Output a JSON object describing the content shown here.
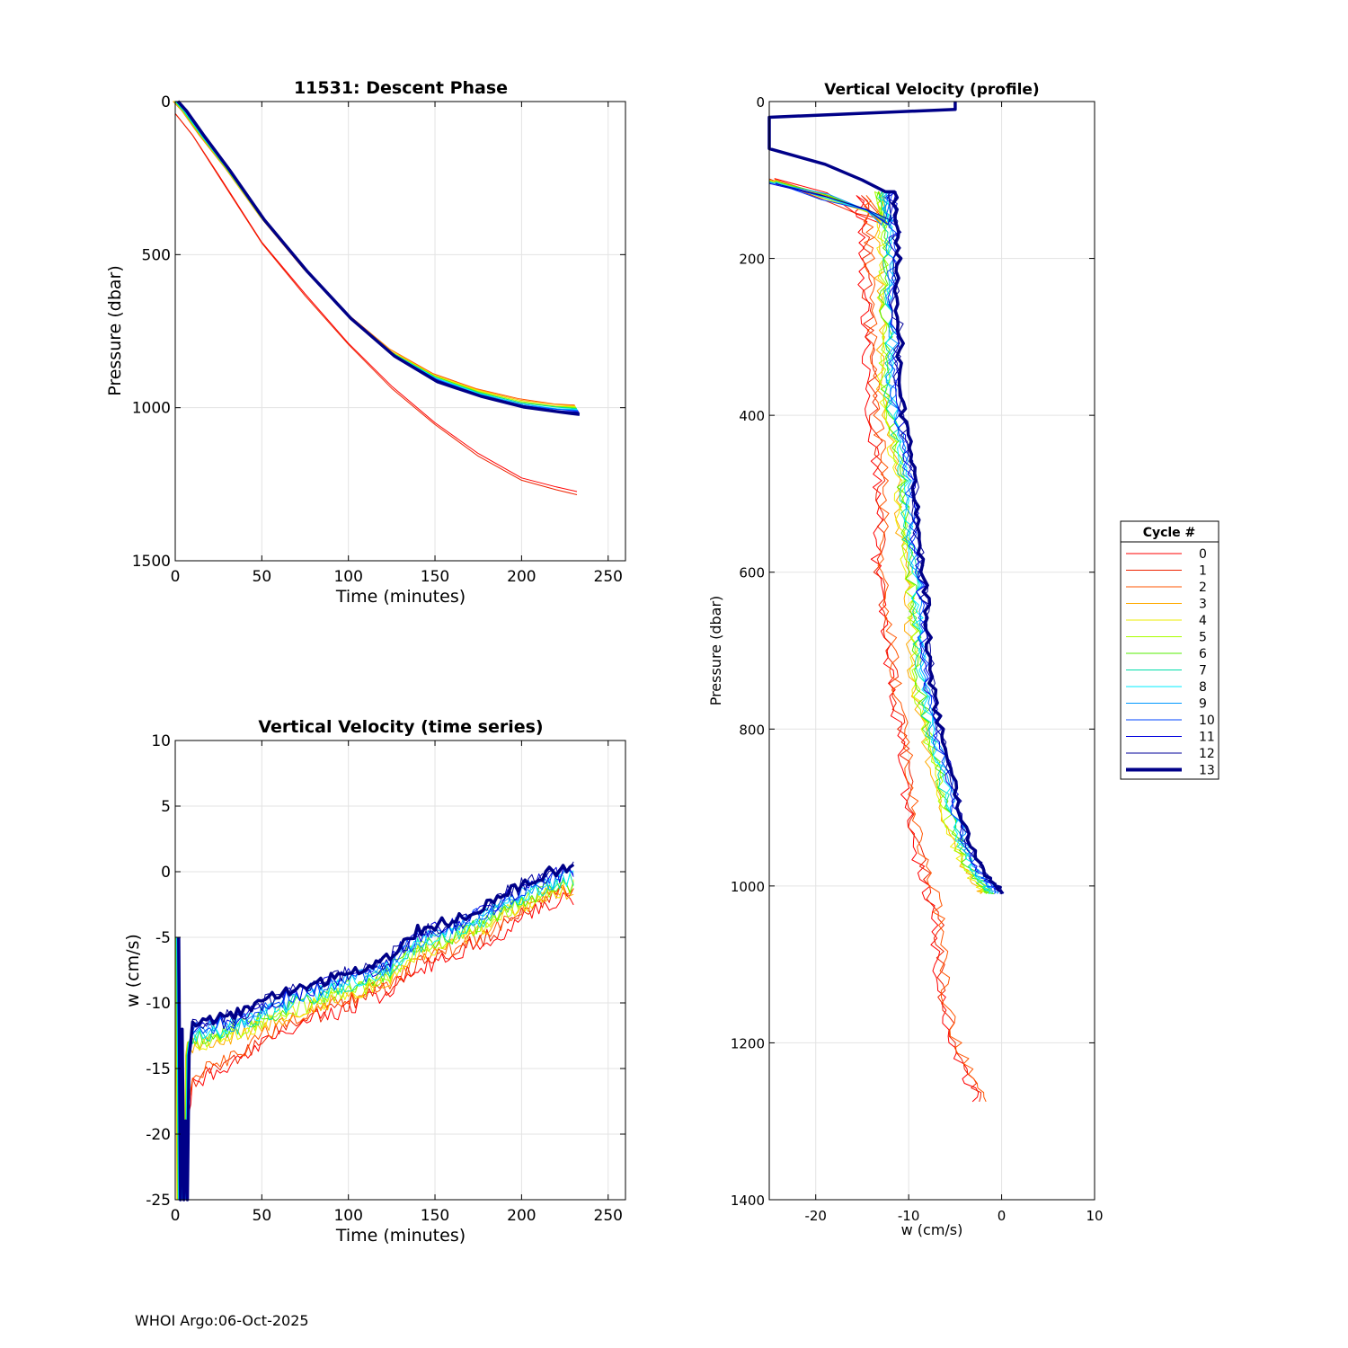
{
  "footer": "WHOI Argo:06-Oct-2025",
  "chart_data": [
    {
      "id": "descent",
      "type": "line",
      "title": "11531: Descent Phase",
      "xlabel": "Time (minutes)",
      "ylabel": "Pressure (dbar)",
      "xlim": [
        0,
        260
      ],
      "ylim": [
        0,
        1500
      ],
      "y_reversed": true,
      "xticks": [
        0,
        50,
        100,
        150,
        200,
        250
      ],
      "yticks": [
        0,
        500,
        1000,
        1500
      ],
      "grid": true
    },
    {
      "id": "ts",
      "type": "line",
      "title": "Vertical Velocity (time series)",
      "xlabel": "Time (minutes)",
      "ylabel": "w (cm/s)",
      "xlim": [
        0,
        260
      ],
      "ylim": [
        -25,
        10
      ],
      "xticks": [
        0,
        50,
        100,
        150,
        200,
        250
      ],
      "yticks": [
        -25,
        -20,
        -15,
        -10,
        -5,
        0,
        5,
        10
      ],
      "grid": true
    },
    {
      "id": "profile",
      "type": "line",
      "title": "Vertical Velocity (profile)",
      "xlabel": "w (cm/s)",
      "ylabel": "Pressure (dbar)",
      "xlim": [
        -25,
        10
      ],
      "ylim": [
        0,
        1400
      ],
      "y_reversed": true,
      "xticks": [
        -20,
        -10,
        0,
        10
      ],
      "yticks": [
        0,
        200,
        400,
        600,
        800,
        1000,
        1200,
        1400
      ],
      "grid": true
    }
  ],
  "legend": {
    "title": "Cycle #",
    "placement": "right",
    "entries": [
      {
        "label": "0",
        "color": "#ff0000"
      },
      {
        "label": "1",
        "color": "#ee2200"
      },
      {
        "label": "2",
        "color": "#ff5500"
      },
      {
        "label": "3",
        "color": "#ffaa00"
      },
      {
        "label": "4",
        "color": "#eeee00"
      },
      {
        "label": "5",
        "color": "#aaff00"
      },
      {
        "label": "6",
        "color": "#55ee00"
      },
      {
        "label": "7",
        "color": "#00ddaa"
      },
      {
        "label": "8",
        "color": "#00eeff"
      },
      {
        "label": "9",
        "color": "#0099ff"
      },
      {
        "label": "10",
        "color": "#0044ff"
      },
      {
        "label": "11",
        "color": "#0000dd"
      },
      {
        "label": "12",
        "color": "#000099"
      },
      {
        "label": "13",
        "color": "#000088",
        "bold": true
      }
    ]
  },
  "series": {
    "descent_main": {
      "time": [
        0,
        5,
        15,
        30,
        50,
        75,
        100,
        125,
        150,
        175,
        200,
        220,
        232
      ],
      "pressure": [
        0,
        30,
        110,
        220,
        380,
        550,
        700,
        820,
        900,
        950,
        985,
        1000,
        1005
      ]
    },
    "descent_red": {
      "time": [
        0,
        10,
        25,
        50,
        75,
        100,
        125,
        150,
        175,
        200,
        220,
        232
      ],
      "pressure": [
        40,
        110,
        240,
        460,
        630,
        790,
        930,
        1050,
        1150,
        1230,
        1260,
        1275
      ]
    },
    "ts_main": {
      "time": [
        0,
        10,
        20,
        30,
        40,
        50,
        60,
        70,
        80,
        90,
        100,
        110,
        120,
        130,
        140,
        150,
        160,
        170,
        180,
        190,
        200,
        210,
        220,
        230
      ],
      "w": [
        -25,
        -12.5,
        -12.2,
        -11.8,
        -11.5,
        -10.8,
        -10.3,
        -9.8,
        -9.4,
        -9.0,
        -8.5,
        -8.2,
        -7.6,
        -6.5,
        -5.4,
        -5.0,
        -4.6,
        -4.0,
        -3.4,
        -2.5,
        -1.8,
        -1.2,
        -0.8,
        -0.5
      ],
      "initial_spike": {
        "time": [
          1,
          2,
          3,
          4,
          5,
          6,
          7,
          8
        ],
        "w": [
          -5,
          -25,
          -12,
          -25,
          -19,
          -25,
          -14,
          -13
        ]
      }
    },
    "ts_red": {
      "time": [
        5,
        10,
        20,
        30,
        40,
        50,
        60,
        70,
        80,
        90,
        100,
        110,
        120,
        130,
        140,
        150,
        160,
        170,
        180,
        190,
        200,
        210,
        220,
        230
      ],
      "w": [
        -22,
        -16,
        -15.2,
        -14.8,
        -14.0,
        -12.8,
        -12.0,
        -11.6,
        -11.0,
        -10.6,
        -10.0,
        -9.6,
        -9.0,
        -8.0,
        -7.0,
        -6.6,
        -6.1,
        -5.5,
        -5.0,
        -4.2,
        -3.2,
        -2.4,
        -1.8,
        -1.6
      ]
    },
    "profile_main": {
      "pressure": [
        115,
        160,
        200,
        250,
        300,
        350,
        400,
        450,
        500,
        550,
        600,
        650,
        700,
        750,
        800,
        850,
        900,
        950,
        980,
        1000,
        1010
      ],
      "w": [
        -12.5,
        -12.2,
        -12.0,
        -12.3,
        -11.8,
        -12.2,
        -11.6,
        -10.8,
        -10.2,
        -10.0,
        -9.4,
        -9.0,
        -8.8,
        -8.4,
        -7.6,
        -6.5,
        -5.5,
        -4.2,
        -3.0,
        -1.6,
        -0.8
      ]
    },
    "profile_red": {
      "pressure": [
        120,
        160,
        200,
        250,
        300,
        350,
        400,
        450,
        500,
        550,
        600,
        650,
        700,
        750,
        800,
        850,
        900,
        950,
        1000,
        1050,
        1100,
        1150,
        1200,
        1240,
        1275
      ],
      "w": [
        -15.0,
        -14.6,
        -14.6,
        -14.5,
        -14.3,
        -14.0,
        -13.8,
        -13.2,
        -13.0,
        -13.0,
        -13.2,
        -12.6,
        -12.0,
        -11.6,
        -10.8,
        -10.2,
        -9.8,
        -9.2,
        -7.8,
        -6.8,
        -6.6,
        -6.2,
        -5.2,
        -3.6,
        -2.2
      ]
    },
    "profile_surface": {
      "pressure": [
        0,
        10,
        20,
        40,
        60,
        80,
        100,
        115
      ],
      "w": [
        -5,
        -5,
        -25,
        -25,
        -25,
        -19,
        -15,
        -12.5
      ]
    }
  }
}
